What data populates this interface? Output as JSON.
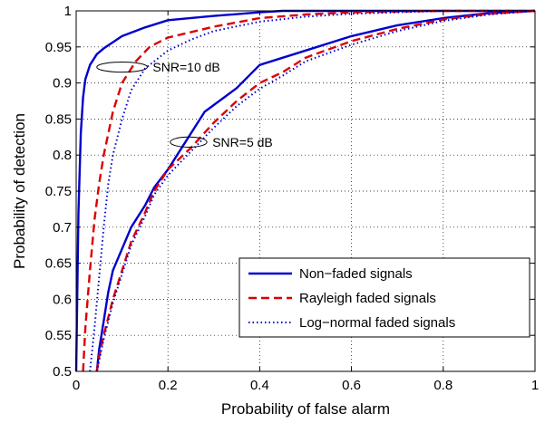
{
  "chart_data": {
    "type": "line",
    "title": "",
    "xlabel": "Probability of false alarm",
    "ylabel": "Probability of detection",
    "xlim": [
      0,
      1
    ],
    "ylim": [
      0.5,
      1
    ],
    "xticks": [
      0,
      0.2,
      0.4,
      0.6,
      0.8,
      1
    ],
    "xtick_labels": [
      "0",
      "0.2",
      "0.4",
      "0.6",
      "0.8",
      "1"
    ],
    "yticks": [
      0.5,
      0.55,
      0.6,
      0.65,
      0.7,
      0.75,
      0.8,
      0.85,
      0.9,
      0.95,
      1
    ],
    "ytick_labels": [
      "0.5",
      "0.55",
      "0.6",
      "0.65",
      "0.7",
      "0.75",
      "0.8",
      "0.85",
      "0.9",
      "0.95",
      "1"
    ],
    "grid": true,
    "legend_position": "bottom-right",
    "series": [
      {
        "name": "Non-faded signals",
        "color": "#0000cc",
        "style": "solid",
        "group": "SNR=10 dB",
        "x": [
          0.0,
          0.005,
          0.01,
          0.015,
          0.02,
          0.03,
          0.045,
          0.06,
          0.1,
          0.15,
          0.2,
          0.3,
          0.4,
          0.45,
          0.6,
          0.8,
          1.0
        ],
        "y": [
          0.5,
          0.72,
          0.83,
          0.88,
          0.905,
          0.925,
          0.94,
          0.948,
          0.965,
          0.977,
          0.987,
          0.993,
          0.998,
          1.0,
          1.0,
          1.0,
          1.0
        ]
      },
      {
        "name": "Rayleigh faded signals",
        "color": "#dd0000",
        "style": "dashed",
        "group": "SNR=10 dB",
        "x": [
          0.015,
          0.02,
          0.03,
          0.04,
          0.05,
          0.06,
          0.08,
          0.1,
          0.13,
          0.16,
          0.2,
          0.3,
          0.4,
          0.5,
          0.6,
          0.8,
          1.0
        ],
        "y": [
          0.5,
          0.56,
          0.64,
          0.71,
          0.76,
          0.8,
          0.86,
          0.9,
          0.93,
          0.95,
          0.963,
          0.978,
          0.99,
          0.995,
          0.998,
          1.0,
          1.0
        ]
      },
      {
        "name": "Log-normal faded signals",
        "color": "#0000cc",
        "style": "dotted",
        "group": "SNR=10 dB",
        "x": [
          0.03,
          0.04,
          0.05,
          0.06,
          0.07,
          0.08,
          0.1,
          0.12,
          0.15,
          0.2,
          0.25,
          0.3,
          0.4,
          0.5,
          0.6,
          0.8,
          1.0
        ],
        "y": [
          0.5,
          0.56,
          0.63,
          0.7,
          0.76,
          0.8,
          0.85,
          0.89,
          0.92,
          0.945,
          0.96,
          0.972,
          0.985,
          0.992,
          0.996,
          1.0,
          1.0
        ]
      },
      {
        "name": "Non-faded signals",
        "color": "#0000cc",
        "style": "solid",
        "group": "SNR=5 dB",
        "x": [
          0.045,
          0.05,
          0.06,
          0.07,
          0.08,
          0.1,
          0.12,
          0.15,
          0.17,
          0.2,
          0.24,
          0.28,
          0.35,
          0.4,
          0.5,
          0.6,
          0.7,
          0.8,
          0.9,
          1.0
        ],
        "y": [
          0.5,
          0.53,
          0.57,
          0.61,
          0.64,
          0.67,
          0.7,
          0.73,
          0.755,
          0.78,
          0.82,
          0.86,
          0.893,
          0.925,
          0.945,
          0.965,
          0.98,
          0.99,
          0.997,
          1.0
        ]
      },
      {
        "name": "Rayleigh faded signals",
        "color": "#dd0000",
        "style": "dashed",
        "group": "SNR=5 dB",
        "x": [
          0.045,
          0.05,
          0.06,
          0.08,
          0.1,
          0.12,
          0.15,
          0.17,
          0.2,
          0.25,
          0.3,
          0.35,
          0.4,
          0.45,
          0.5,
          0.6,
          0.7,
          0.8,
          0.9,
          1.0
        ],
        "y": [
          0.5,
          0.52,
          0.55,
          0.6,
          0.64,
          0.68,
          0.72,
          0.75,
          0.78,
          0.81,
          0.845,
          0.875,
          0.9,
          0.915,
          0.935,
          0.958,
          0.975,
          0.988,
          0.996,
          1.0
        ]
      },
      {
        "name": "Log-normal faded signals",
        "color": "#0000cc",
        "style": "dotted",
        "group": "SNR=5 dB",
        "x": [
          0.045,
          0.05,
          0.06,
          0.08,
          0.1,
          0.12,
          0.15,
          0.17,
          0.2,
          0.25,
          0.3,
          0.35,
          0.4,
          0.45,
          0.5,
          0.6,
          0.7,
          0.8,
          0.9,
          1.0
        ],
        "y": [
          0.5,
          0.515,
          0.545,
          0.595,
          0.635,
          0.675,
          0.715,
          0.745,
          0.772,
          0.805,
          0.838,
          0.868,
          0.892,
          0.91,
          0.93,
          0.953,
          0.972,
          0.986,
          0.995,
          1.0
        ]
      }
    ],
    "legend": [
      {
        "label": "Non−faded signals",
        "color": "#0000cc",
        "style": "solid"
      },
      {
        "label": "Rayleigh faded signals",
        "color": "#dd0000",
        "style": "dashed"
      },
      {
        "label": "Log−normal faded signals",
        "color": "#0000cc",
        "style": "dotted"
      }
    ],
    "annotations": [
      {
        "text": "SNR=10 dB",
        "ellipse_center": [
          0.1,
          0.922
        ],
        "ellipse_radii": [
          0.055,
          0.007
        ]
      },
      {
        "text": "SNR=5 dB",
        "ellipse_center": [
          0.245,
          0.818
        ],
        "ellipse_radii": [
          0.04,
          0.007
        ]
      }
    ]
  }
}
